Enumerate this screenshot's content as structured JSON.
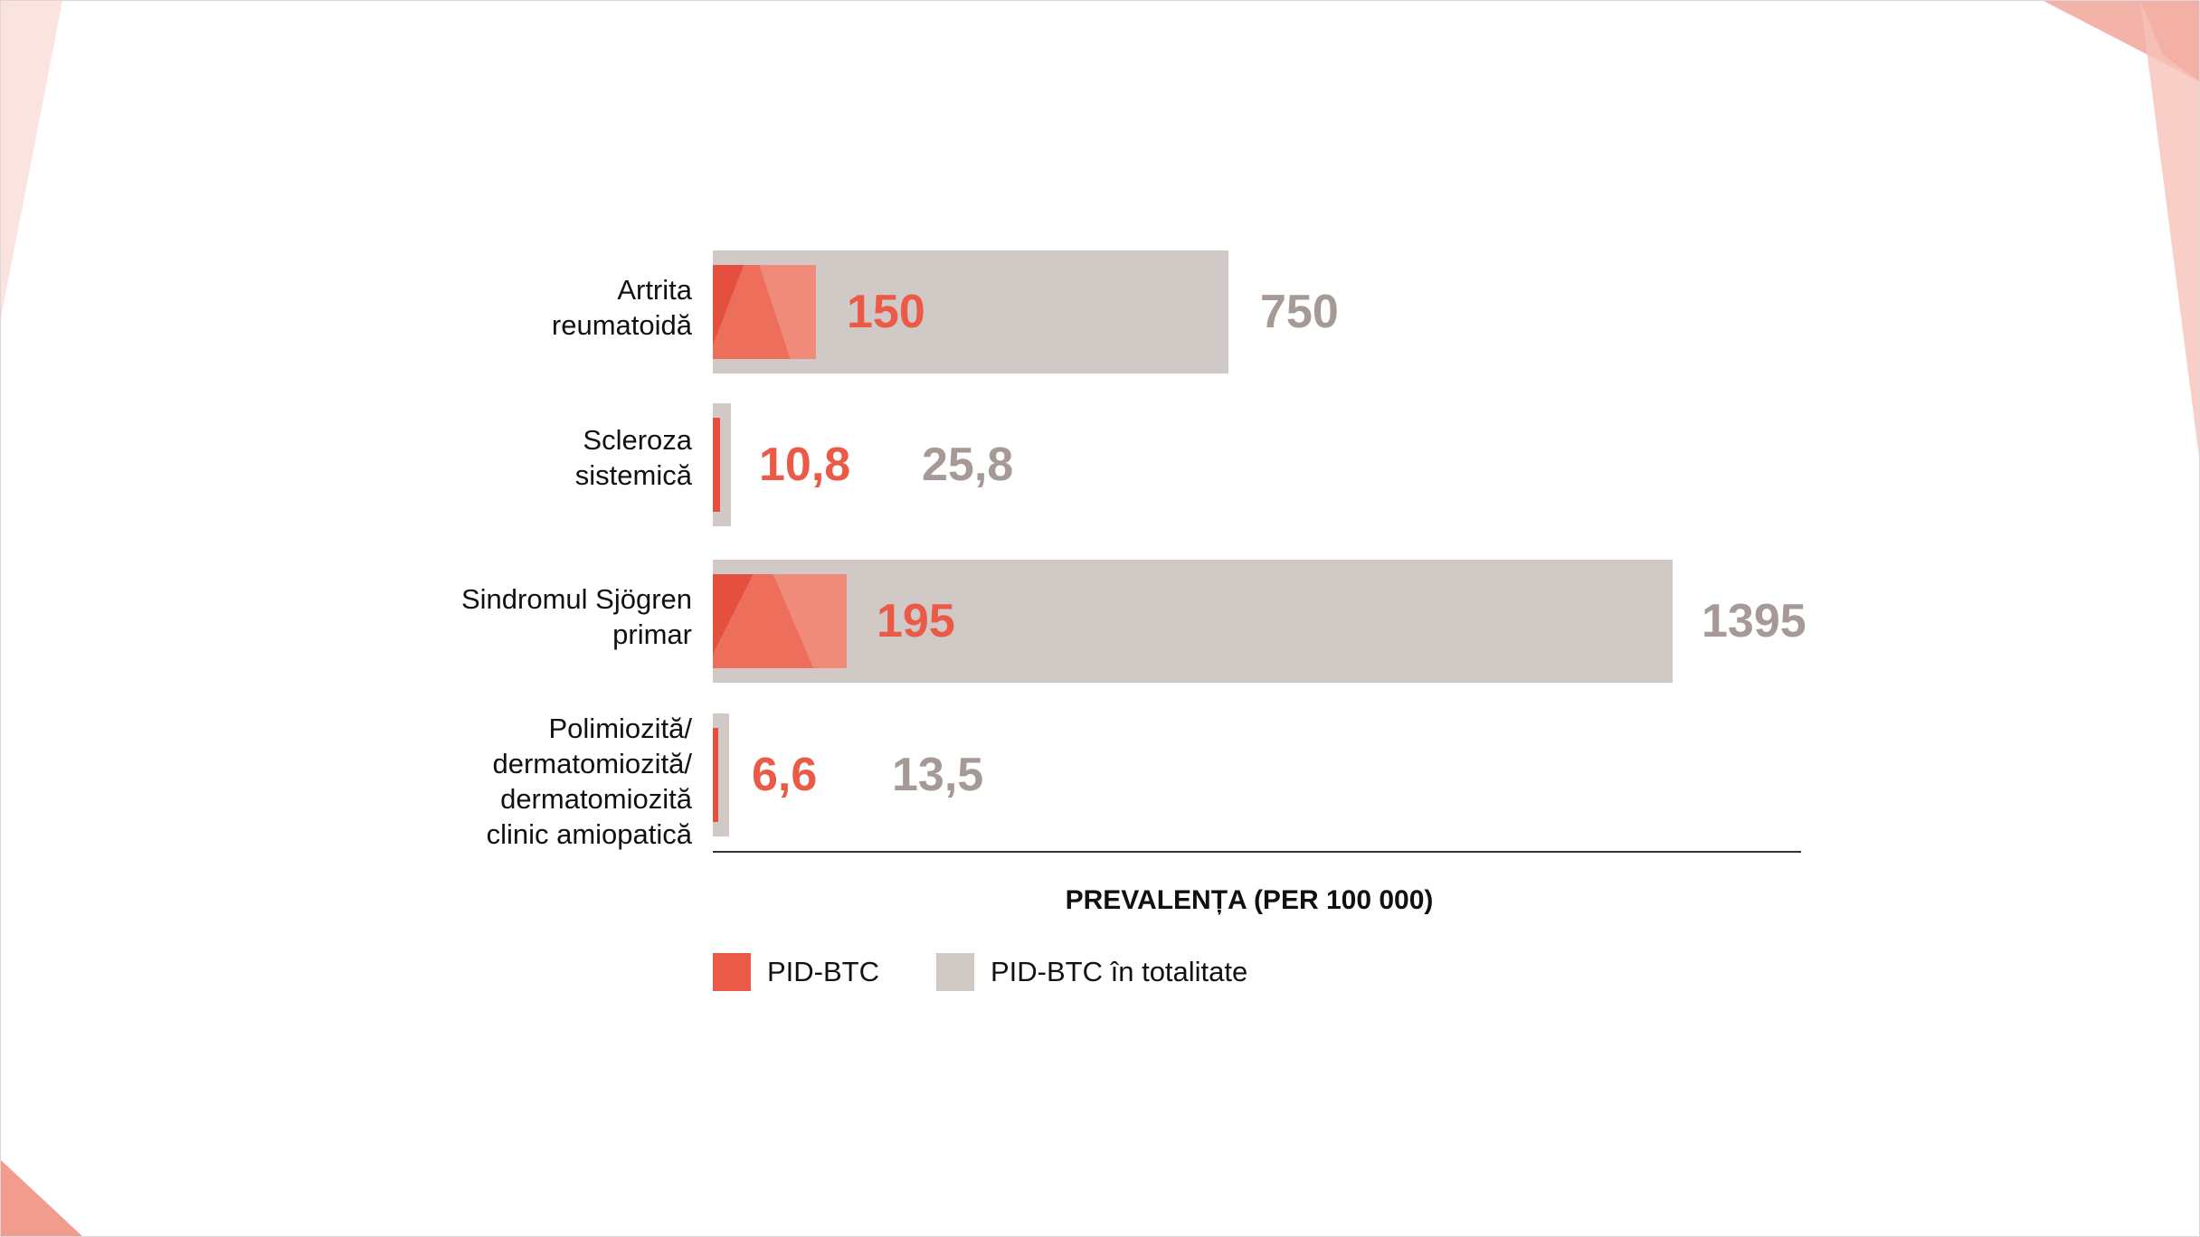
{
  "chart_data": {
    "type": "bar",
    "orientation": "horizontal",
    "categories": [
      [
        "Artrita",
        "reumatoidă"
      ],
      [
        "Scleroza",
        "sistemică"
      ],
      [
        "Sindromul Sjögren",
        "primar"
      ],
      [
        "Polimiozită/",
        "dermatomiozită/",
        "dermatomiozită",
        "clinic amiopatică"
      ]
    ],
    "series": [
      {
        "name": "PID-BTC",
        "color": "#ea5a47",
        "values": [
          150,
          10.8,
          195,
          6.6
        ],
        "value_labels": [
          "150",
          "10,8",
          "195",
          "6,6"
        ]
      },
      {
        "name": "PID-BTC în totalitate",
        "color": "#d1c9c6",
        "label_color": "#a59a96",
        "values": [
          750,
          25.8,
          1395,
          13.5
        ],
        "value_labels": [
          "750",
          "25,8",
          "1395",
          "13,5"
        ]
      }
    ],
    "xlabel": "PREVALENȚA (PER 100 000)",
    "xlim": [
      0,
      1580
    ],
    "grid": false,
    "legend_position": "bottom-left"
  }
}
